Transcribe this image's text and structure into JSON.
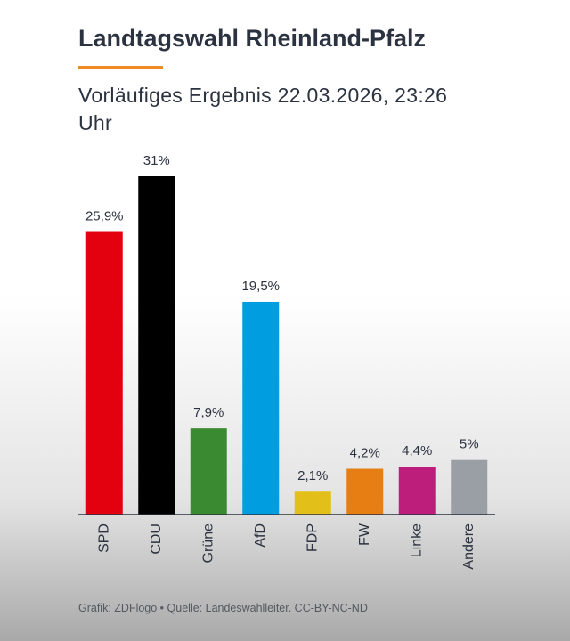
{
  "chart_data": {
    "type": "bar",
    "title": "Landtagswahl Rheinland-Pfalz",
    "subtitle": "Vorläufiges Ergebnis 22.03.2026, 23:26 Uhr",
    "categories": [
      "SPD",
      "CDU",
      "Grüne",
      "AfD",
      "FDP",
      "FW",
      "Linke",
      "Andere"
    ],
    "values": [
      25.9,
      31,
      7.9,
      19.5,
      2.1,
      4.2,
      4.4,
      5
    ],
    "value_labels": [
      "25,9%",
      "31%",
      "7,9%",
      "19,5%",
      "2,1%",
      "4,2%",
      "4,4%",
      "5%"
    ],
    "colors": [
      "#e3000f",
      "#000000",
      "#3a8a32",
      "#009ee0",
      "#e2c019",
      "#e67e14",
      "#be1e7b",
      "#9a9ea5"
    ],
    "ylim": [
      0,
      31
    ],
    "footer": "Grafik: ZDFlogo • Quelle: Landeswahlleiter. CC-BY-NC-ND"
  }
}
